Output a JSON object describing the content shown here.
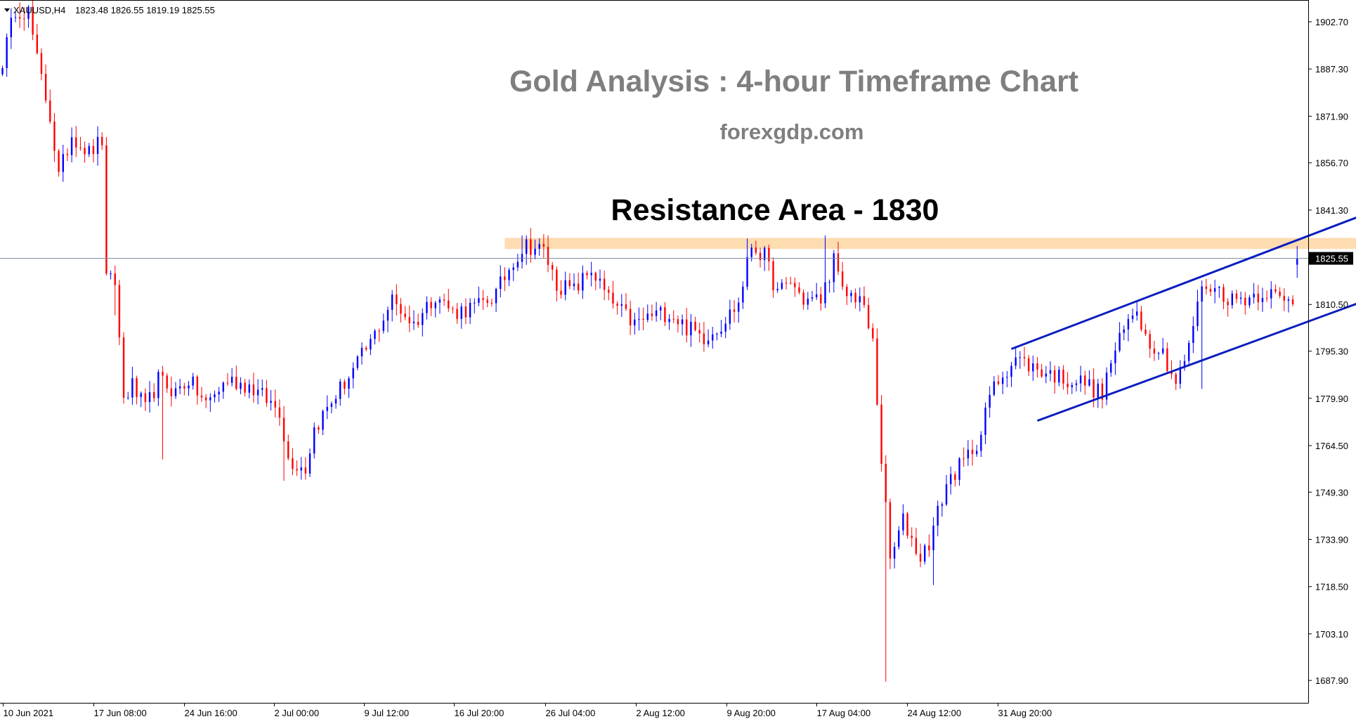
{
  "header": {
    "symbol": "XAUUSD,H4",
    "ohlc": "1823.48 1826.55 1819.19 1825.55"
  },
  "annotations": {
    "title": "Gold Analysis : 4-hour Timeframe Chart",
    "site": "forexgdp.com",
    "resistance_label": "Resistance Area - 1830"
  },
  "current_price_label": "1825.55",
  "colors": {
    "bull": "#0000ff",
    "bear": "#ff0000",
    "channel": "#0a1ebe",
    "resistance_zone": "#fddcb0",
    "price_line": "#778899",
    "title_text": "#7f7f7f",
    "label_text": "#000000"
  },
  "chart_data": {
    "type": "candlestick",
    "symbol": "XAUUSD",
    "timeframe": "H4",
    "last": {
      "open": 1823.48,
      "high": 1826.55,
      "low": 1819.19,
      "close": 1825.55
    },
    "current_price": 1825.55,
    "ylim": [
      1680.6,
      1909.8
    ],
    "y_ticks": [
      "1902.70",
      "1887.30",
      "1871.90",
      "1856.70",
      "1841.30",
      "1825.55",
      "1810.50",
      "1795.30",
      "1779.90",
      "1764.50",
      "1749.30",
      "1733.90",
      "1718.50",
      "1703.10",
      "1687.90"
    ],
    "x_ticks": [
      "10 Jun 2021",
      "17 Jun 08:00",
      "24 Jun 16:00",
      "2 Jul 00:00",
      "9 Jul 12:00",
      "16 Jul 20:00",
      "26 Jul 04:00",
      "2 Aug 12:00",
      "9 Aug 20:00",
      "17 Aug 04:00",
      "24 Aug 12:00",
      "31 Aug 20:00"
    ],
    "resistance_zone": {
      "from": 1828.6,
      "to": 1832.2,
      "start_bar": 116,
      "end_bar": 345,
      "label": "Resistance Area - 1830"
    },
    "channel": {
      "upper": {
        "from": [
          233,
          1796.0
        ],
        "to": [
          378,
          1874.0
        ]
      },
      "lower": {
        "from": [
          239,
          1772.6
        ],
        "to": [
          378,
          1844.5
        ]
      }
    },
    "waypoints": [
      [
        0,
        1890
      ],
      [
        3,
        1907
      ],
      [
        6,
        1906
      ],
      [
        8,
        1890
      ],
      [
        11,
        1872
      ],
      [
        13,
        1852
      ],
      [
        16,
        1866
      ],
      [
        20,
        1860
      ],
      [
        23,
        1864
      ],
      [
        24,
        1818
      ],
      [
        26,
        1818
      ],
      [
        28,
        1780
      ],
      [
        30,
        1784
      ],
      [
        33,
        1776
      ],
      [
        36,
        1786
      ],
      [
        40,
        1782
      ],
      [
        43,
        1786
      ],
      [
        47,
        1778
      ],
      [
        52,
        1786
      ],
      [
        57,
        1784
      ],
      [
        64,
        1776
      ],
      [
        66,
        1760
      ],
      [
        70,
        1757
      ],
      [
        72,
        1770
      ],
      [
        77,
        1781
      ],
      [
        81,
        1789
      ],
      [
        85,
        1798
      ],
      [
        90,
        1812
      ],
      [
        95,
        1804
      ],
      [
        100,
        1814
      ],
      [
        104,
        1808
      ],
      [
        110,
        1810
      ],
      [
        114,
        1814
      ],
      [
        118,
        1825
      ],
      [
        121,
        1830
      ],
      [
        125,
        1828
      ],
      [
        128,
        1817
      ],
      [
        132,
        1815
      ],
      [
        136,
        1822
      ],
      [
        140,
        1812
      ],
      [
        146,
        1804
      ],
      [
        150,
        1807
      ],
      [
        154,
        1808
      ],
      [
        158,
        1803
      ],
      [
        162,
        1800
      ],
      [
        166,
        1804
      ],
      [
        170,
        1811
      ],
      [
        173,
        1830
      ],
      [
        176,
        1826
      ],
      [
        179,
        1814
      ],
      [
        182,
        1818
      ],
      [
        185,
        1812
      ],
      [
        189,
        1812
      ],
      [
        192,
        1825
      ],
      [
        194,
        1814
      ],
      [
        198,
        1813
      ],
      [
        201,
        1798
      ],
      [
        203,
        1760
      ],
      [
        205,
        1727
      ],
      [
        208,
        1740
      ],
      [
        212,
        1728
      ],
      [
        214,
        1733
      ],
      [
        218,
        1752
      ],
      [
        220,
        1756
      ],
      [
        222,
        1759
      ],
      [
        226,
        1768
      ],
      [
        228,
        1781
      ],
      [
        231,
        1788
      ],
      [
        234,
        1793
      ],
      [
        238,
        1790
      ],
      [
        242,
        1788
      ],
      [
        246,
        1786
      ],
      [
        250,
        1785
      ],
      [
        254,
        1781
      ],
      [
        256,
        1792
      ],
      [
        260,
        1805
      ],
      [
        262,
        1810
      ],
      [
        264,
        1800
      ],
      [
        268,
        1795
      ],
      [
        271,
        1785
      ],
      [
        274,
        1796
      ],
      [
        276,
        1812
      ],
      [
        278,
        1817
      ],
      [
        281,
        1815
      ],
      [
        284,
        1812
      ],
      [
        288,
        1813
      ],
      [
        292,
        1815
      ],
      [
        296,
        1811
      ],
      [
        299,
        1813
      ],
      [
        300,
        1825
      ]
    ]
  }
}
